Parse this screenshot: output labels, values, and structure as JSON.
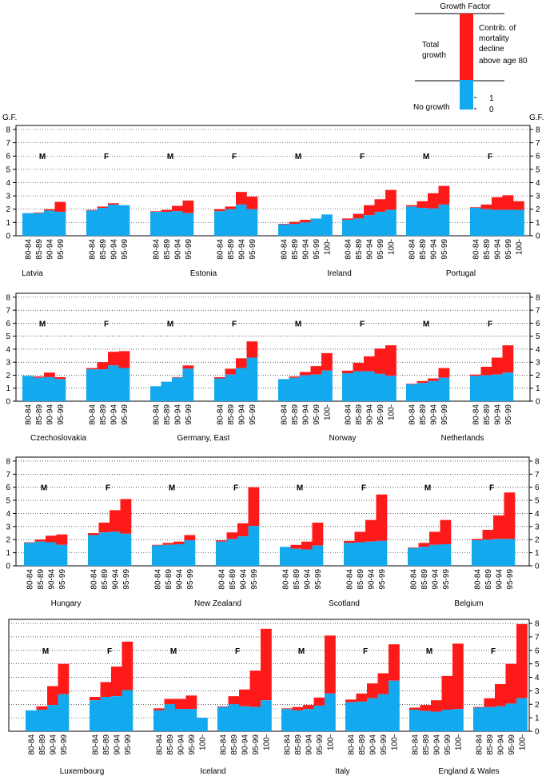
{
  "legend": {
    "title": "Growth Factor",
    "total_growth": [
      "Total",
      "growth"
    ],
    "contrib": [
      "Contrib. of",
      "mortality",
      "decline",
      "above age 80"
    ],
    "no_growth": "No growth",
    "tick_one": "1",
    "tick_zero": "0"
  },
  "y_axis_label": "G.F.",
  "y_ticks": [
    "0",
    "1",
    "2",
    "3",
    "4",
    "5",
    "6",
    "7",
    "8"
  ],
  "colors": {
    "base": "#12A9EE",
    "contrib": "#FF1A1A",
    "axis": "#000000",
    "grid": "#000000"
  },
  "chart_data": [
    {
      "type": "bar",
      "stacked": true,
      "ylim": [
        0,
        8
      ],
      "grid": "dotted",
      "series_colors": [
        "base",
        "contrib"
      ],
      "groups": [
        {
          "country": "Latvia",
          "sex": "M",
          "categories": [
            "80-84",
            "85-89",
            "90-94",
            "95-99"
          ],
          "base": [
            1.7,
            1.7,
            1.9,
            1.8
          ],
          "total": [
            1.7,
            1.75,
            2.0,
            2.55
          ]
        },
        {
          "country": "Latvia",
          "sex": "F",
          "categories": [
            "80-84",
            "85-89",
            "90-94",
            "95-99"
          ],
          "base": [
            1.9,
            2.1,
            2.35,
            2.3
          ],
          "total": [
            1.95,
            2.2,
            2.45,
            2.3
          ]
        },
        {
          "country": "Estonia",
          "sex": "M",
          "categories": [
            "80-84",
            "85-89",
            "90-94",
            "95-99"
          ],
          "base": [
            1.8,
            1.8,
            1.85,
            1.7
          ],
          "total": [
            1.85,
            1.95,
            2.25,
            2.65
          ]
        },
        {
          "country": "Estonia",
          "sex": "F",
          "categories": [
            "80-84",
            "85-89",
            "90-94",
            "95-99"
          ],
          "base": [
            1.85,
            2.0,
            2.35,
            2.0
          ],
          "total": [
            2.0,
            2.2,
            3.3,
            2.95
          ]
        },
        {
          "country": "Ireland",
          "sex": "M",
          "categories": [
            "80-84",
            "85-89",
            "90-94",
            "95-99",
            "100-"
          ],
          "base": [
            0.85,
            0.9,
            1.0,
            1.3,
            1.6
          ],
          "total": [
            0.9,
            1.05,
            1.2,
            1.3,
            1.6
          ]
        },
        {
          "country": "Ireland",
          "sex": "F",
          "categories": [
            "80-84",
            "85-89",
            "90-94",
            "95-99",
            "100-"
          ],
          "base": [
            1.2,
            1.3,
            1.55,
            1.8,
            1.95
          ],
          "total": [
            1.3,
            1.65,
            2.3,
            2.75,
            3.45
          ]
        },
        {
          "country": "Portugal",
          "sex": "M",
          "categories": [
            "80-84",
            "85-89",
            "90-94",
            "95-99"
          ],
          "base": [
            2.2,
            2.1,
            2.05,
            2.35
          ],
          "total": [
            2.3,
            2.6,
            3.2,
            3.75
          ]
        },
        {
          "country": "Portugal",
          "sex": "F",
          "categories": [
            "80-84",
            "85-89",
            "90-94",
            "95-99",
            "100-"
          ],
          "base": [
            2.1,
            2.0,
            1.95,
            1.95,
            1.95
          ],
          "total": [
            2.15,
            2.35,
            2.9,
            3.05,
            2.6
          ]
        }
      ]
    },
    {
      "type": "bar",
      "stacked": true,
      "ylim": [
        0,
        8
      ],
      "grid": "dotted",
      "series_colors": [
        "base",
        "contrib"
      ],
      "groups": [
        {
          "country": "Czechoslovakia",
          "sex": "M",
          "categories": [
            "80-84",
            "85-89",
            "90-94",
            "95-99"
          ],
          "base": [
            1.95,
            1.8,
            1.85,
            1.7
          ],
          "total": [
            1.95,
            1.9,
            2.2,
            1.85
          ]
        },
        {
          "country": "Czechoslovakia",
          "sex": "F",
          "categories": [
            "80-84",
            "85-89",
            "90-94",
            "95-99"
          ],
          "base": [
            2.45,
            2.45,
            2.75,
            2.55
          ],
          "total": [
            2.55,
            3.0,
            3.8,
            3.85
          ]
        },
        {
          "country": "Germany, East",
          "sex": "M",
          "categories": [
            "80-84",
            "85-89",
            "90-94",
            "95-99"
          ],
          "base": [
            1.15,
            1.5,
            1.8,
            2.5
          ],
          "total": [
            1.15,
            1.5,
            1.85,
            2.75
          ]
        },
        {
          "country": "Germany, East",
          "sex": "F",
          "categories": [
            "80-84",
            "85-89",
            "90-94",
            "95-99"
          ],
          "base": [
            1.75,
            2.05,
            2.55,
            3.35
          ],
          "total": [
            1.85,
            2.5,
            3.3,
            4.6
          ]
        },
        {
          "country": "Norway",
          "sex": "M",
          "categories": [
            "80-84",
            "85-89",
            "90-94",
            "95-99",
            "100-"
          ],
          "base": [
            1.7,
            1.8,
            2.0,
            2.05,
            2.35
          ],
          "total": [
            1.7,
            1.9,
            2.25,
            2.7,
            3.7
          ]
        },
        {
          "country": "Norway",
          "sex": "F",
          "categories": [
            "80-84",
            "85-89",
            "90-94",
            "95-99",
            "100-"
          ],
          "base": [
            2.15,
            2.3,
            2.3,
            2.1,
            1.95
          ],
          "total": [
            2.35,
            2.95,
            3.45,
            4.05,
            4.3
          ]
        },
        {
          "country": "Netherlands",
          "sex": "M",
          "categories": [
            "80-84",
            "85-89",
            "90-94",
            "95-99"
          ],
          "base": [
            1.3,
            1.4,
            1.55,
            1.8
          ],
          "total": [
            1.35,
            1.55,
            1.75,
            2.55
          ]
        },
        {
          "country": "Netherlands",
          "sex": "F",
          "categories": [
            "80-84",
            "85-89",
            "90-94",
            "95-99"
          ],
          "base": [
            1.95,
            2.0,
            2.05,
            2.2
          ],
          "total": [
            2.05,
            2.65,
            3.35,
            4.3
          ]
        }
      ]
    },
    {
      "type": "bar",
      "stacked": true,
      "ylim": [
        0,
        8
      ],
      "grid": "dotted",
      "series_colors": [
        "base",
        "contrib"
      ],
      "groups": [
        {
          "country": "Hungary",
          "sex": "M",
          "categories": [
            "80-84",
            "85-89",
            "90-94",
            "95-99"
          ],
          "base": [
            1.75,
            1.85,
            1.8,
            1.6
          ],
          "total": [
            1.8,
            2.0,
            2.3,
            2.4
          ]
        },
        {
          "country": "Hungary",
          "sex": "F",
          "categories": [
            "80-84",
            "85-89",
            "90-94",
            "95-99"
          ],
          "base": [
            2.35,
            2.55,
            2.6,
            2.45
          ],
          "total": [
            2.5,
            3.3,
            4.25,
            5.1
          ]
        },
        {
          "country": "New Zealand",
          "sex": "M",
          "categories": [
            "80-84",
            "85-89",
            "90-94",
            "95-99"
          ],
          "base": [
            1.55,
            1.6,
            1.65,
            1.95
          ],
          "total": [
            1.6,
            1.75,
            1.85,
            2.35
          ]
        },
        {
          "country": "New Zealand",
          "sex": "F",
          "categories": [
            "80-84",
            "85-89",
            "90-94",
            "95-99"
          ],
          "base": [
            1.85,
            2.05,
            2.25,
            3.05
          ],
          "total": [
            1.95,
            2.55,
            3.25,
            6.0
          ]
        },
        {
          "country": "Scotland",
          "sex": "M",
          "categories": [
            "80-84",
            "85-89",
            "90-94",
            "95-99"
          ],
          "base": [
            1.45,
            1.3,
            1.25,
            1.55
          ],
          "total": [
            1.45,
            1.6,
            1.85,
            3.3
          ]
        },
        {
          "country": "Scotland",
          "sex": "F",
          "categories": [
            "80-84",
            "85-89",
            "90-94",
            "95-99"
          ],
          "base": [
            1.75,
            1.8,
            1.85,
            1.9
          ],
          "total": [
            1.9,
            2.6,
            3.5,
            5.45
          ]
        },
        {
          "country": "Belgium",
          "sex": "M",
          "categories": [
            "80-84",
            "85-89",
            "90-94",
            "95-99"
          ],
          "base": [
            1.35,
            1.45,
            1.6,
            1.65
          ],
          "total": [
            1.4,
            1.75,
            2.6,
            3.5
          ]
        },
        {
          "country": "Belgium",
          "sex": "F",
          "categories": [
            "80-84",
            "85-89",
            "90-94",
            "95-99"
          ],
          "base": [
            1.95,
            2.0,
            2.05,
            2.05
          ],
          "total": [
            2.05,
            2.75,
            3.85,
            5.6
          ]
        }
      ]
    },
    {
      "type": "bar",
      "stacked": true,
      "ylim": [
        0,
        8
      ],
      "grid": "dotted",
      "series_colors": [
        "base",
        "contrib"
      ],
      "groups": [
        {
          "country": "Luxembourg",
          "sex": "M",
          "categories": [
            "80-84",
            "85-89",
            "90-94",
            "95-99"
          ],
          "base": [
            1.55,
            1.6,
            1.95,
            2.75
          ],
          "total": [
            1.55,
            1.85,
            3.35,
            5.0
          ]
        },
        {
          "country": "Luxembourg",
          "sex": "F",
          "categories": [
            "80-84",
            "85-89",
            "90-94",
            "95-99"
          ],
          "base": [
            2.3,
            2.55,
            2.6,
            3.05
          ],
          "total": [
            2.55,
            3.65,
            4.8,
            6.65
          ]
        },
        {
          "country": "Iceland",
          "sex": "M",
          "categories": [
            "80-84",
            "85-89",
            "90-94",
            "95-99",
            "100-"
          ],
          "base": [
            1.55,
            2.0,
            1.65,
            1.65,
            1.0
          ],
          "total": [
            1.7,
            2.4,
            2.4,
            2.65,
            1.0
          ]
        },
        {
          "country": "Iceland",
          "sex": "F",
          "categories": [
            "80-84",
            "85-89",
            "90-94",
            "95-99",
            "100-"
          ],
          "base": [
            1.8,
            2.0,
            1.85,
            1.8,
            2.3
          ],
          "total": [
            1.85,
            2.6,
            3.1,
            4.5,
            7.6
          ]
        },
        {
          "country": "Italy",
          "sex": "M",
          "categories": [
            "80-84",
            "85-89",
            "90-94",
            "95-99",
            "100-"
          ],
          "base": [
            1.65,
            1.55,
            1.65,
            1.9,
            2.8
          ],
          "total": [
            1.7,
            1.8,
            1.95,
            2.5,
            7.1
          ]
        },
        {
          "country": "Italy",
          "sex": "F",
          "categories": [
            "80-84",
            "85-89",
            "90-94",
            "95-99",
            "100-"
          ],
          "base": [
            2.15,
            2.2,
            2.45,
            2.75,
            3.75
          ],
          "total": [
            2.35,
            2.8,
            3.55,
            4.3,
            6.45
          ]
        },
        {
          "country": "England & Wales",
          "sex": "M",
          "categories": [
            "80-84",
            "85-89",
            "90-94",
            "95-99",
            "100-"
          ],
          "base": [
            1.6,
            1.5,
            1.45,
            1.6,
            1.65
          ],
          "total": [
            1.75,
            1.95,
            2.3,
            4.1,
            6.5
          ]
        },
        {
          "country": "England & Wales",
          "sex": "F",
          "categories": [
            "80-84",
            "85-89",
            "90-94",
            "95-99",
            "100-"
          ],
          "base": [
            1.75,
            1.8,
            1.85,
            2.05,
            2.45
          ],
          "total": [
            1.8,
            2.45,
            3.5,
            5.0,
            7.95
          ]
        }
      ]
    }
  ]
}
